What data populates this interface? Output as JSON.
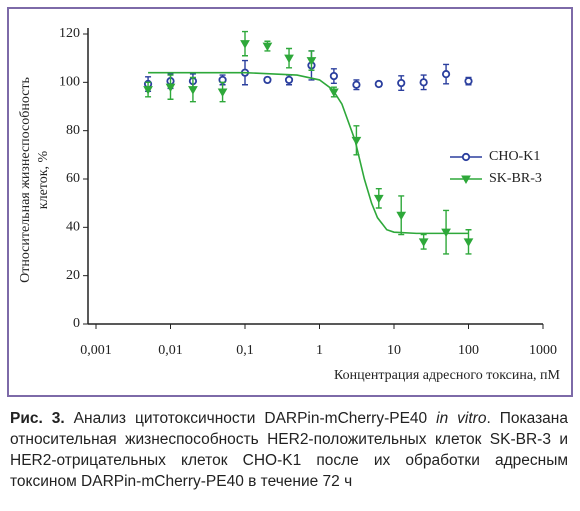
{
  "chart_data": {
    "type": "scatter",
    "x_label": "Концентрация адресного токсина, пМ",
    "y_label": [
      "Относительная жизнеспособность",
      "клеток, %"
    ],
    "xscale": "log",
    "xlim": [
      0.001,
      1000
    ],
    "xticks": [
      {
        "value": 0.001,
        "label": "0,001"
      },
      {
        "value": 0.01,
        "label": "0,01"
      },
      {
        "value": 0.1,
        "label": "0,1"
      },
      1,
      10,
      100,
      1000
    ],
    "ylim": [
      0,
      120
    ],
    "yticks": [
      0,
      20,
      40,
      60,
      80,
      100,
      120
    ],
    "legend": "right",
    "series": [
      {
        "name": "CHO-K1",
        "color": "#2b3f9e",
        "marker": "circle",
        "x": [
          0.005,
          0.01,
          0.02,
          0.05,
          0.1,
          0.2,
          0.39,
          0.78,
          1.56,
          3.13,
          6.25,
          12.5,
          25,
          50,
          100
        ],
        "values": [
          99.3,
          100.5,
          100.5,
          101,
          104,
          101,
          101,
          107,
          102.6,
          99,
          99.3,
          99.7,
          100,
          103.4,
          100.5
        ],
        "errors": [
          3,
          3,
          3,
          2,
          5,
          1,
          2,
          6,
          3,
          2,
          1,
          3,
          3,
          4,
          1.5
        ]
      },
      {
        "name": "SK-BR-3",
        "color": "#2ea83a",
        "marker": "triangle",
        "x": [
          0.005,
          0.01,
          0.02,
          0.05,
          0.1,
          0.2,
          0.39,
          0.78,
          1.56,
          3.13,
          6.25,
          12.5,
          25,
          50,
          100
        ],
        "values": [
          97,
          98,
          97,
          96,
          116,
          115,
          110,
          109,
          96,
          76,
          52,
          45,
          34,
          38,
          34
        ],
        "errors": [
          3,
          5,
          5,
          4,
          5,
          2,
          4,
          4,
          2,
          6,
          4,
          8,
          3,
          9,
          5
        ],
        "fit": {
          "x": [
            0.005,
            0.1,
            0.5,
            1,
            1.5,
            2,
            3,
            4,
            5,
            6,
            8,
            10,
            20,
            100
          ],
          "values": [
            104,
            104,
            103,
            101,
            97,
            91,
            76,
            60,
            50,
            44,
            39,
            38,
            37.5,
            37.5
          ]
        }
      }
    ]
  },
  "caption": {
    "label": "Рис. 3.",
    "text1": " Анализ цитотоксичности DARPin-mCherry-PE40 ",
    "italic": "in vitro",
    "text2": ". Показана относительная жизнеспособность HER2-положительных клеток SK-BR-3 и HER2-отрицательных клеток CHO-K1 после их обработки адресным токсином DARPin-mCherry-PE40 в течение 72 ч"
  }
}
